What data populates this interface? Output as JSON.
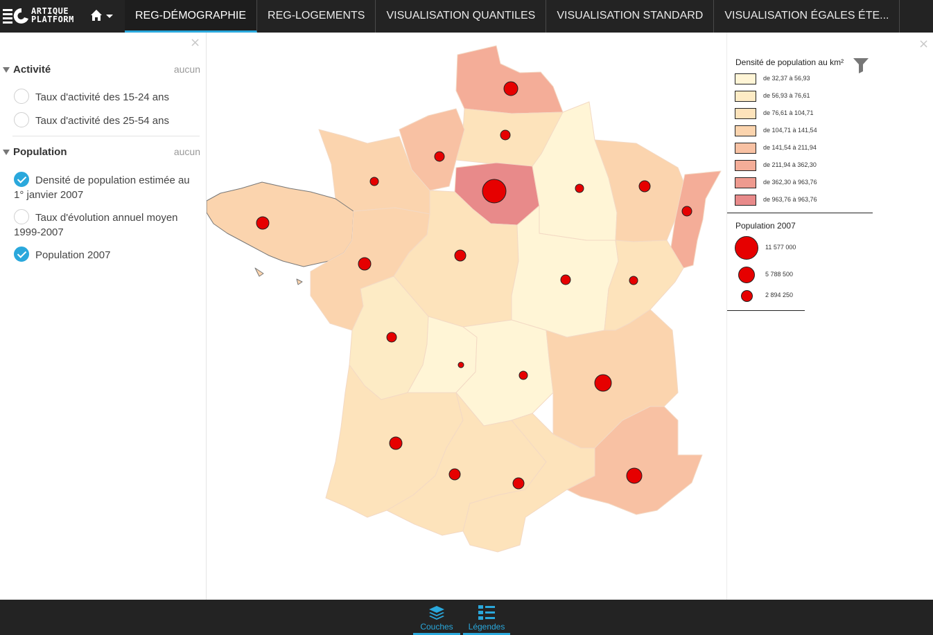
{
  "brand": {
    "name_line1": "ARTIQUE",
    "name_line2": "PLATFORM"
  },
  "nav": {
    "home_icon": "home-icon",
    "tabs": [
      {
        "label": "REG-DÉMOGRAPHIE",
        "active": true
      },
      {
        "label": "REG-LOGEMENTS",
        "active": false
      },
      {
        "label": "VISUALISATION QUANTILES",
        "active": false
      },
      {
        "label": "VISUALISATION STANDARD",
        "active": false
      },
      {
        "label": "VISUALISATION ÉGALES ÉTE...",
        "active": false
      }
    ]
  },
  "left_panel": {
    "close_label": "×",
    "groups": [
      {
        "title": "Activité",
        "none_label": "aucun",
        "items": [
          {
            "label": "Taux d'activité des 15-24 ans",
            "checked": false
          },
          {
            "label": "Taux d'activité des 25-54 ans",
            "checked": false
          }
        ]
      },
      {
        "title": "Population",
        "none_label": "aucun",
        "items": [
          {
            "label": "Densité de population estimée au 1° janvier 2007",
            "checked": true
          },
          {
            "label": "Taux d'évolution annuel moyen 1999-2007",
            "checked": false
          },
          {
            "label": "Population 2007",
            "checked": true
          }
        ]
      }
    ]
  },
  "legend": {
    "close_label": "×",
    "density_title": "Densité de population au km²",
    "density_classes": [
      {
        "label": "de 32,37 à 56,93",
        "color": "#fff5d6"
      },
      {
        "label": "de 56,93 à 76,61",
        "color": "#fdebc5"
      },
      {
        "label": "de 76,61 à 104,71",
        "color": "#fde3bb"
      },
      {
        "label": "de 104,71 à 141,54",
        "color": "#fbd4ae"
      },
      {
        "label": "de 141,54 à 211,94",
        "color": "#f8c1a3"
      },
      {
        "label": "de 211,94 à 362,30",
        "color": "#f4ad98"
      },
      {
        "label": "de 362,30 à 963,76",
        "color": "#ee9a8f"
      },
      {
        "label": "de 963,76 à 963,76",
        "color": "#e88a8a"
      }
    ],
    "population_title": "Population 2007",
    "population_sizes": [
      {
        "label": "11 577 000",
        "value": 11577000
      },
      {
        "label": "5 788 500",
        "value": 5788500
      },
      {
        "label": "2 894 250",
        "value": 2894250
      }
    ],
    "symbol_color": "#e60000",
    "filter_icon": "filter-icon"
  },
  "bottom_bar": {
    "layers_label": "Couches",
    "legends_label": "Légendes",
    "accent": "#2aa8dc"
  }
}
